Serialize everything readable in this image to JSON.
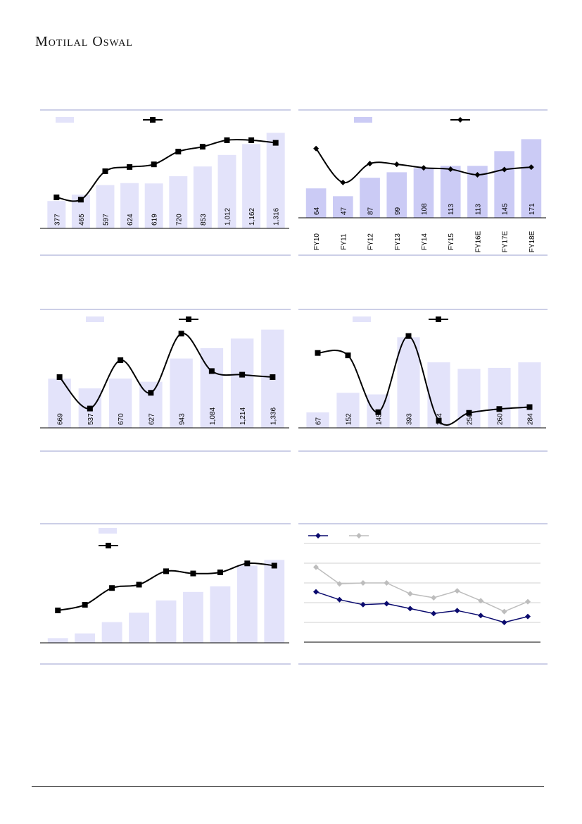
{
  "header": {
    "logo_text": "Motilal Oswal"
  },
  "colors": {
    "bar_light": "#e3e3fa",
    "bar_medium": "#cbcbf5",
    "line_black": "#000000",
    "line_navy": "#0a0a6e",
    "line_grey": "#bdbdbd",
    "rule": "#9a9fcf"
  },
  "chart_data": [
    {
      "id": "chart1",
      "type": "bar",
      "values": [
        377,
        465,
        597,
        624,
        619,
        720,
        853,
        1012,
        1162,
        1316
      ],
      "value_labels": [
        "377",
        "465",
        "597",
        "624",
        "619",
        "720",
        "853",
        "1,012",
        "1,162",
        "1,316"
      ],
      "line": {
        "marker": "square",
        "values": [
          0.95,
          0.88,
          1.75,
          1.88,
          1.96,
          2.35,
          2.5,
          2.7,
          2.7,
          2.62
        ]
      },
      "ylim": [
        0,
        1350
      ],
      "line_ylim": [
        0,
        3
      ],
      "legend": "top"
    },
    {
      "id": "chart2",
      "type": "bar",
      "categories": [
        "FY10",
        "FY11",
        "FY12",
        "FY13",
        "FY14",
        "FY15",
        "FY16E",
        "FY17E",
        "FY18E"
      ],
      "values": [
        64,
        47,
        87,
        99,
        108,
        113,
        113,
        145,
        171
      ],
      "value_labels": [
        "64",
        "47",
        "87",
        "99",
        "108",
        "113",
        "113",
        "145",
        "171"
      ],
      "line": {
        "marker": "diamond",
        "values": [
          34.8,
          25.1,
          30.5,
          30.3,
          29.3,
          28.9,
          27.3,
          28.8,
          29.5
        ]
      },
      "ylim": [
        0,
        190
      ],
      "line_ylim": [
        15,
        40
      ],
      "legend": "top"
    },
    {
      "id": "chart3",
      "type": "bar",
      "values": [
        669,
        537,
        670,
        627,
        943,
        1084,
        1214,
        1336
      ],
      "value_labels": [
        "669",
        "537",
        "670",
        "627",
        "943",
        "1,084",
        "1,214",
        "1,336"
      ],
      "line": {
        "marker": "square",
        "values": [
          2.1,
          0.8,
          2.8,
          1.45,
          3.9,
          2.35,
          2.2,
          2.1
        ]
      },
      "ylim": [
        0,
        1380
      ],
      "line_ylim": [
        0,
        4.2
      ],
      "legend": "top"
    },
    {
      "id": "chart4",
      "type": "bar",
      "values": [
        67,
        152,
        145,
        393,
        284,
        256,
        260,
        284
      ],
      "value_labels": [
        "67",
        "152",
        "145",
        "393",
        "284",
        "256",
        "260",
        "284"
      ],
      "line": {
        "marker": "square",
        "values": [
          3.1,
          3.0,
          0.65,
          3.8,
          0.3,
          0.62,
          0.78,
          0.86
        ]
      },
      "ylim": [
        0,
        440
      ],
      "line_ylim": [
        0,
        4.2
      ],
      "legend": "top"
    },
    {
      "id": "chart5",
      "type": "bar",
      "values": [
        0.5,
        1.0,
        2.2,
        3.2,
        4.5,
        5.4,
        6.0,
        8.2,
        8.8
      ],
      "line": {
        "marker": "square",
        "values": [
          1.45,
          1.7,
          2.45,
          2.6,
          3.2,
          3.1,
          3.15,
          3.55,
          3.45
        ]
      },
      "ylim": [
        0,
        9.5
      ],
      "line_ylim": [
        0,
        4.0
      ],
      "legend": "top-left"
    },
    {
      "id": "chart6",
      "type": "line",
      "series": [
        {
          "values": [
            2.55,
            2.15,
            1.9,
            1.95,
            1.7,
            1.45,
            1.6,
            1.35,
            1.0,
            1.3
          ],
          "marker": "diamond",
          "color": "#0a0a6e"
        },
        {
          "values": [
            3.8,
            2.95,
            3.0,
            3.0,
            2.45,
            2.25,
            2.6,
            2.1,
            1.55,
            2.05
          ],
          "marker": "diamond",
          "color": "#bdbdbd"
        }
      ],
      "ylim": [
        0,
        5
      ],
      "grid": true,
      "legend": "top-left"
    }
  ]
}
